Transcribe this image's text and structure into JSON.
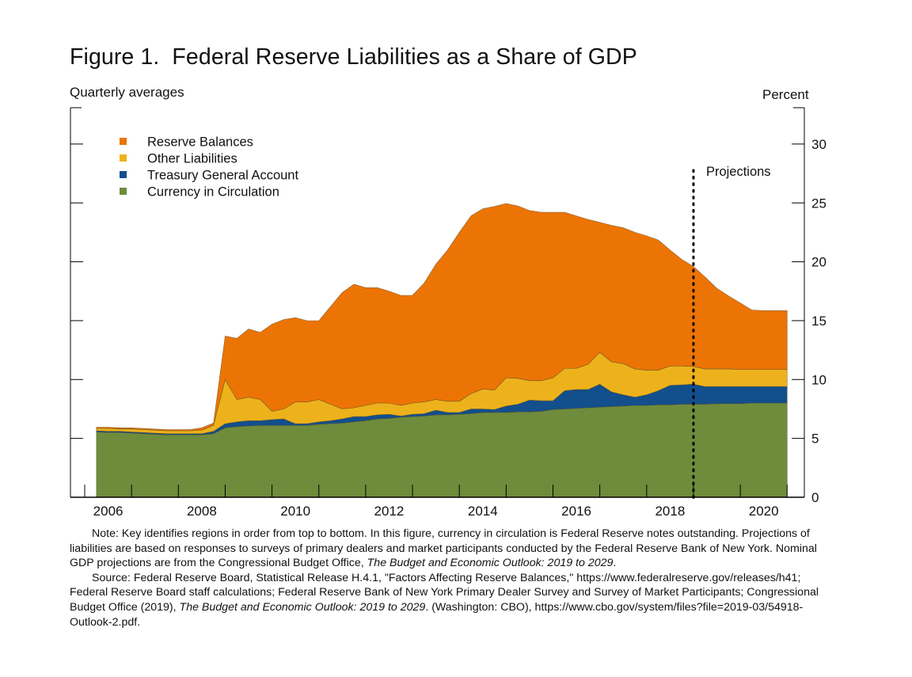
{
  "title": "Figure 1.  Federal Reserve Liabilities as a Share of GDP",
  "left_unit_label": "Quarterly averages",
  "right_unit_label": "Percent",
  "notes": {
    "note_1": "Note:  Key identifies regions in order from top to bottom.  In this figure, currency in circulation is Federal Reserve notes outstanding.  Projections of liabilities are based on responses to surveys of primary dealers and market participants conducted by the Federal Reserve Bank of New York.  Nominal GDP projections are from the Congressional Budget Office, ",
    "note_1_italic": "The Budget and Economic Outlook: 2019 to 2029",
    "note_1_end": ".",
    "source_1": "Source: Federal Reserve Board, Statistical Release H.4.1, \"Factors Affecting Reserve Balances,\" https://www.federalreserve.gov/releases/h41; Federal Reserve Board staff calculations; Federal Reserve Bank of New York Primary Dealer Survey and Survey of Market Participants;  Congressional Budget Office (2019), ",
    "source_italic": "The Budget and Economic Outlook: 2019 to 2029",
    "source_2": ".  (Washington:  CBO), https://www.cbo.gov/system/files?file=2019-03/54918-Outlook-2.pdf."
  },
  "chart_data": {
    "type": "area",
    "stacked": true,
    "title": "Figure 1.  Federal Reserve Liabilities as a Share of GDP",
    "xlabel": "",
    "ylabel": "Percent",
    "ylim": [
      0,
      33
    ],
    "xlim": [
      2005.5,
      2021.5
    ],
    "yticks": [
      0,
      5,
      10,
      15,
      20,
      25,
      30
    ],
    "ytick_labels": [
      "0",
      "5",
      "10",
      "15",
      "20",
      "25",
      "30"
    ],
    "xtick_labels": [
      "2006",
      "2008",
      "2010",
      "2012",
      "2014",
      "2016",
      "2018",
      "2020"
    ],
    "grid": false,
    "legend_position": "top-left",
    "legend_order_note": "top to bottom",
    "annotation": {
      "label": "Projections",
      "x": 2019.0
    },
    "x": [
      2006.25,
      2006.5,
      2006.75,
      2007.0,
      2007.25,
      2007.5,
      2007.75,
      2008.0,
      2008.25,
      2008.5,
      2008.75,
      2009.0,
      2009.25,
      2009.5,
      2009.75,
      2010.0,
      2010.25,
      2010.5,
      2010.75,
      2011.0,
      2011.25,
      2011.5,
      2011.75,
      2012.0,
      2012.25,
      2012.5,
      2012.75,
      2013.0,
      2013.25,
      2013.5,
      2013.75,
      2014.0,
      2014.25,
      2014.5,
      2014.75,
      2015.0,
      2015.25,
      2015.5,
      2015.75,
      2016.0,
      2016.25,
      2016.5,
      2016.75,
      2017.0,
      2017.25,
      2017.5,
      2017.75,
      2018.0,
      2018.25,
      2018.5,
      2018.75,
      2019.0,
      2019.25,
      2019.5,
      2019.75,
      2020.0,
      2020.25,
      2020.5,
      2020.75,
      2021.0
    ],
    "series": [
      {
        "name": "Currency in Circulation",
        "color": "#6E8C3C",
        "values": [
          5.55,
          5.5,
          5.5,
          5.45,
          5.4,
          5.35,
          5.3,
          5.3,
          5.3,
          5.3,
          5.4,
          5.9,
          6.0,
          6.05,
          6.1,
          6.1,
          6.1,
          6.1,
          6.1,
          6.2,
          6.25,
          6.3,
          6.4,
          6.5,
          6.65,
          6.7,
          6.8,
          6.85,
          6.9,
          7.0,
          7.0,
          7.05,
          7.1,
          7.2,
          7.2,
          7.2,
          7.25,
          7.25,
          7.3,
          7.45,
          7.5,
          7.55,
          7.6,
          7.65,
          7.7,
          7.75,
          7.8,
          7.8,
          7.85,
          7.85,
          7.9,
          7.9,
          7.9,
          7.95,
          7.95,
          7.95,
          8.0,
          8.0,
          8.0,
          8.0
        ]
      },
      {
        "name": "Treasury General Account",
        "color": "#124F8C",
        "values": [
          0.1,
          0.1,
          0.1,
          0.1,
          0.1,
          0.1,
          0.1,
          0.1,
          0.1,
          0.1,
          0.2,
          0.35,
          0.4,
          0.45,
          0.4,
          0.5,
          0.55,
          0.15,
          0.15,
          0.2,
          0.25,
          0.35,
          0.45,
          0.35,
          0.35,
          0.35,
          0.1,
          0.2,
          0.2,
          0.4,
          0.2,
          0.15,
          0.4,
          0.3,
          0.25,
          0.55,
          0.65,
          1.0,
          0.9,
          0.75,
          1.55,
          1.6,
          1.55,
          1.95,
          1.25,
          0.95,
          0.7,
          0.9,
          1.2,
          1.65,
          1.65,
          1.7,
          1.5,
          1.45,
          1.45,
          1.45,
          1.4,
          1.4,
          1.4,
          1.4
        ]
      },
      {
        "name": "Other Liabilities",
        "color": "#EDB21B",
        "values": [
          0.2,
          0.25,
          0.2,
          0.25,
          0.25,
          0.25,
          0.25,
          0.25,
          0.25,
          0.3,
          0.5,
          3.75,
          1.9,
          2.0,
          1.8,
          0.7,
          0.85,
          1.85,
          1.85,
          1.9,
          1.4,
          0.85,
          0.75,
          0.95,
          1.0,
          0.95,
          0.9,
          0.95,
          1.0,
          0.9,
          0.95,
          0.95,
          1.3,
          1.7,
          1.65,
          2.4,
          2.2,
          1.65,
          1.7,
          1.95,
          1.9,
          1.8,
          2.15,
          2.7,
          2.55,
          2.65,
          2.4,
          2.1,
          1.75,
          1.65,
          1.6,
          1.5,
          1.5,
          1.5,
          1.5,
          1.45,
          1.45,
          1.45,
          1.45,
          1.45
        ]
      },
      {
        "name": "Reserve Balances",
        "color": "#EC7404",
        "values": [
          0.1,
          0.1,
          0.1,
          0.1,
          0.1,
          0.1,
          0.1,
          0.1,
          0.1,
          0.2,
          0.2,
          3.7,
          5.2,
          5.8,
          5.7,
          7.4,
          7.6,
          7.15,
          6.9,
          6.7,
          8.3,
          9.9,
          10.5,
          10.0,
          9.8,
          9.5,
          9.35,
          9.15,
          10.1,
          11.5,
          12.85,
          14.35,
          15.1,
          15.3,
          15.6,
          14.8,
          14.65,
          14.45,
          14.3,
          14.05,
          13.25,
          12.95,
          12.3,
          11.05,
          11.6,
          11.55,
          11.6,
          11.4,
          11.05,
          9.85,
          9.05,
          8.5,
          7.8,
          6.85,
          6.2,
          5.65,
          5.05,
          5.0,
          5.0,
          5.0
        ]
      }
    ],
    "legend": [
      "Reserve Balances",
      "Other Liabilities",
      "Treasury General Account",
      "Currency in Circulation"
    ]
  }
}
